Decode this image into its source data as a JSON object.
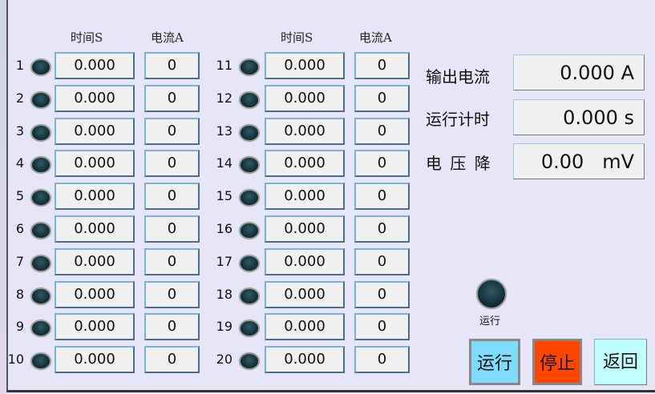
{
  "headers": {
    "time": "时间S",
    "current": "电流A"
  },
  "channels": [
    {
      "n": "1",
      "time": "0.000",
      "current": "0"
    },
    {
      "n": "2",
      "time": "0.000",
      "current": "0"
    },
    {
      "n": "3",
      "time": "0.000",
      "current": "0"
    },
    {
      "n": "4",
      "time": "0.000",
      "current": "0"
    },
    {
      "n": "5",
      "time": "0.000",
      "current": "0"
    },
    {
      "n": "6",
      "time": "0.000",
      "current": "0"
    },
    {
      "n": "7",
      "time": "0.000",
      "current": "0"
    },
    {
      "n": "8",
      "time": "0.000",
      "current": "0"
    },
    {
      "n": "9",
      "time": "0.000",
      "current": "0"
    },
    {
      "n": "10",
      "time": "0.000",
      "current": "0"
    },
    {
      "n": "11",
      "time": "0.000",
      "current": "0"
    },
    {
      "n": "12",
      "time": "0.000",
      "current": "0"
    },
    {
      "n": "13",
      "time": "0.000",
      "current": "0"
    },
    {
      "n": "14",
      "time": "0.000",
      "current": "0"
    },
    {
      "n": "15",
      "time": "0.000",
      "current": "0"
    },
    {
      "n": "16",
      "time": "0.000",
      "current": "0"
    },
    {
      "n": "17",
      "time": "0.000",
      "current": "0"
    },
    {
      "n": "18",
      "time": "0.000",
      "current": "0"
    },
    {
      "n": "19",
      "time": "0.000",
      "current": "0"
    },
    {
      "n": "20",
      "time": "0.000",
      "current": "0"
    }
  ],
  "readouts": [
    {
      "label": "输出电流",
      "value": "0.000 A"
    },
    {
      "label": "运行计时",
      "value": "0.000 s"
    },
    {
      "label": "电 压 降",
      "value": "0.00   mV"
    }
  ],
  "run_indicator": {
    "label": "运行",
    "state": "off"
  },
  "buttons": {
    "run": "运行",
    "stop": "停止",
    "back": "返回"
  },
  "colors": {
    "run": "#7fdcff",
    "stop": "#ff4500",
    "back": "#c0ffff",
    "led_off": "#1e3f49"
  }
}
